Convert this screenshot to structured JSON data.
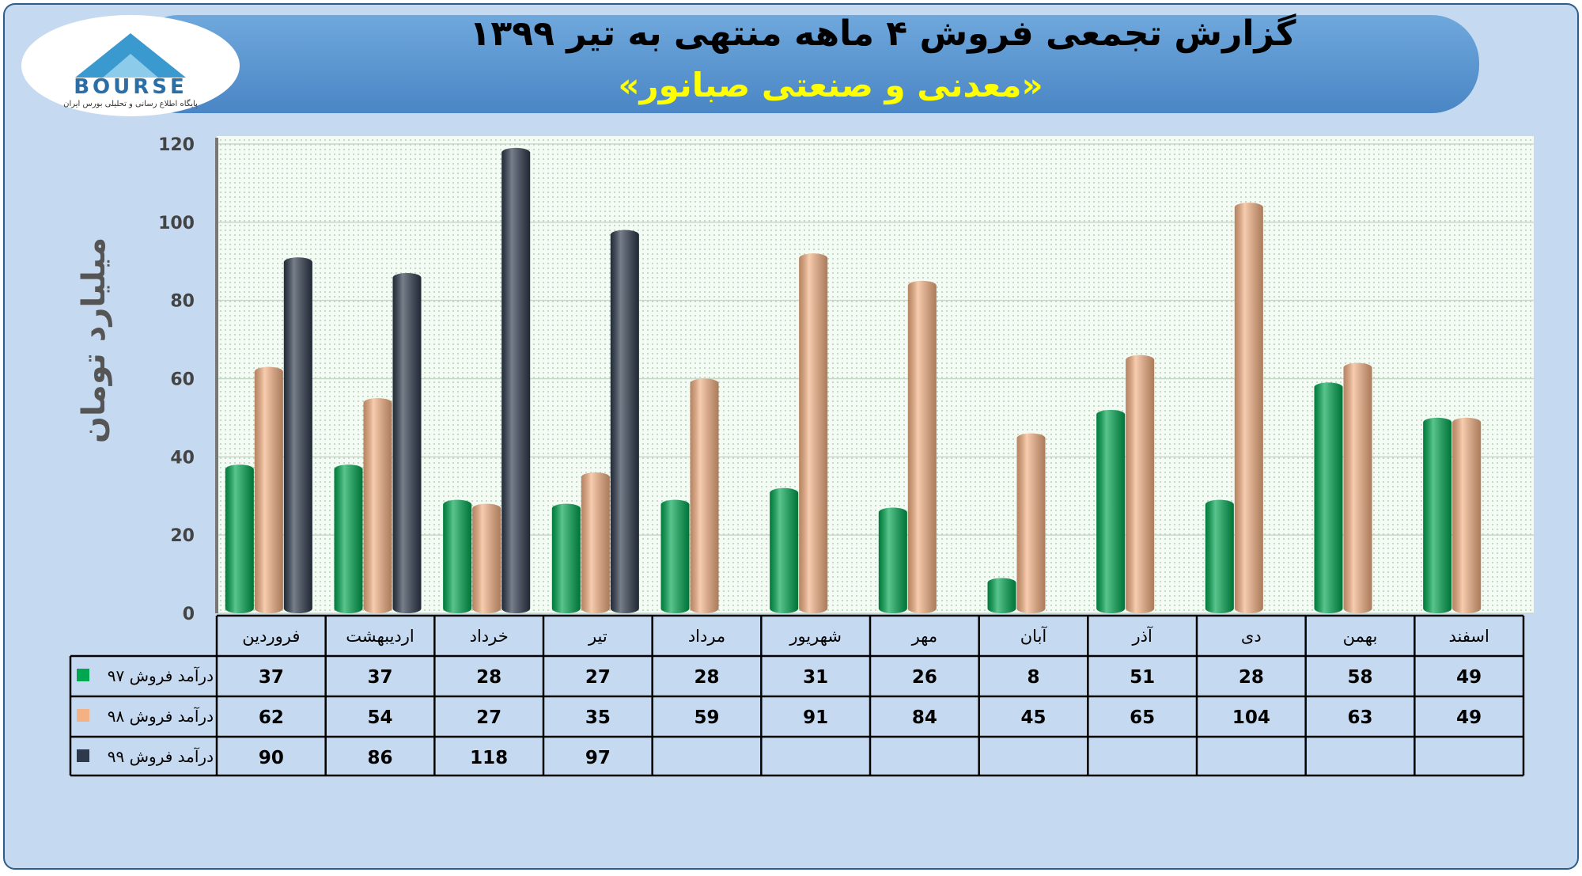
{
  "logo": {
    "name": "BOURSE",
    "tagline": "پایگاه اطلاع رسانی و تحلیلی بورس ایران"
  },
  "chart_data": {
    "type": "bar",
    "title": "گزارش تجمعی فروش ۴ ماهه منتهی به تیر ۱۳۹۹",
    "subtitle": "«معدنی و صنعتی صبانور»",
    "y_label": "میلیارد تومان",
    "categories": [
      "فروردین",
      "اردیبهشت",
      "خرداد",
      "تیر",
      "مرداد",
      "شهریور",
      "مهر",
      "آبان",
      "آذر",
      "دی",
      "بهمن",
      "اسفند"
    ],
    "series": [
      {
        "name": "درآمد فروش ۹۷",
        "color": "#00a650",
        "values": [
          37,
          37,
          28,
          27,
          28,
          31,
          26,
          8,
          51,
          28,
          58,
          49
        ]
      },
      {
        "name": "درآمد فروش ۹۸",
        "color": "#f4b183",
        "values": [
          62,
          54,
          27,
          35,
          59,
          91,
          84,
          45,
          65,
          104,
          63,
          49
        ]
      },
      {
        "name": "درآمد فروش ۹۹",
        "color": "#2e3a4c",
        "values": [
          90,
          86,
          118,
          97,
          null,
          null,
          null,
          null,
          null,
          null,
          null,
          null
        ]
      }
    ],
    "ylim": [
      0,
      120
    ],
    "yticks": [
      0,
      20,
      40,
      60,
      80,
      100,
      120
    ],
    "grid": true
  }
}
